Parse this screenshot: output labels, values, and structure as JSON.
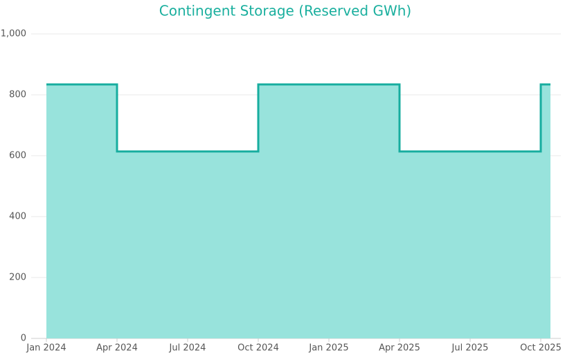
{
  "chart_data": {
    "type": "step-area",
    "title": "Contingent Storage (Reserved GWh)",
    "x": [
      "2024-01",
      "2024-02",
      "2024-03",
      "2024-04",
      "2024-05",
      "2024-06",
      "2024-07",
      "2024-08",
      "2024-09",
      "2024-10",
      "2024-11",
      "2024-12",
      "2025-01",
      "2025-02",
      "2025-03",
      "2025-04",
      "2025-05",
      "2025-06",
      "2025-07",
      "2025-08",
      "2025-09",
      "2025-10"
    ],
    "values": [
      834,
      834,
      834,
      614,
      614,
      614,
      614,
      614,
      614,
      834,
      834,
      834,
      834,
      834,
      834,
      614,
      614,
      614,
      614,
      614,
      614,
      834
    ],
    "line_color": "#17ad9f",
    "fill_color": "#98e3dc",
    "xlim": [
      "2024-01",
      "2025-10"
    ],
    "xticks": [
      {
        "value": "2024-01",
        "label": "Jan 2024"
      },
      {
        "value": "2024-04",
        "label": "Apr 2024"
      },
      {
        "value": "2024-07",
        "label": "Jul 2024"
      },
      {
        "value": "2024-10",
        "label": "Oct 2024"
      },
      {
        "value": "2025-01",
        "label": "Jan 2025"
      },
      {
        "value": "2025-04",
        "label": "Apr 2025"
      },
      {
        "value": "2025-07",
        "label": "Jul 2025"
      },
      {
        "value": "2025-10",
        "label": "Oct 2025"
      }
    ],
    "ylim": [
      0,
      1000
    ],
    "yticks": [
      0,
      200,
      400,
      600,
      800,
      {
        "value": 1000,
        "label": "1,000"
      }
    ],
    "grid": true
  }
}
